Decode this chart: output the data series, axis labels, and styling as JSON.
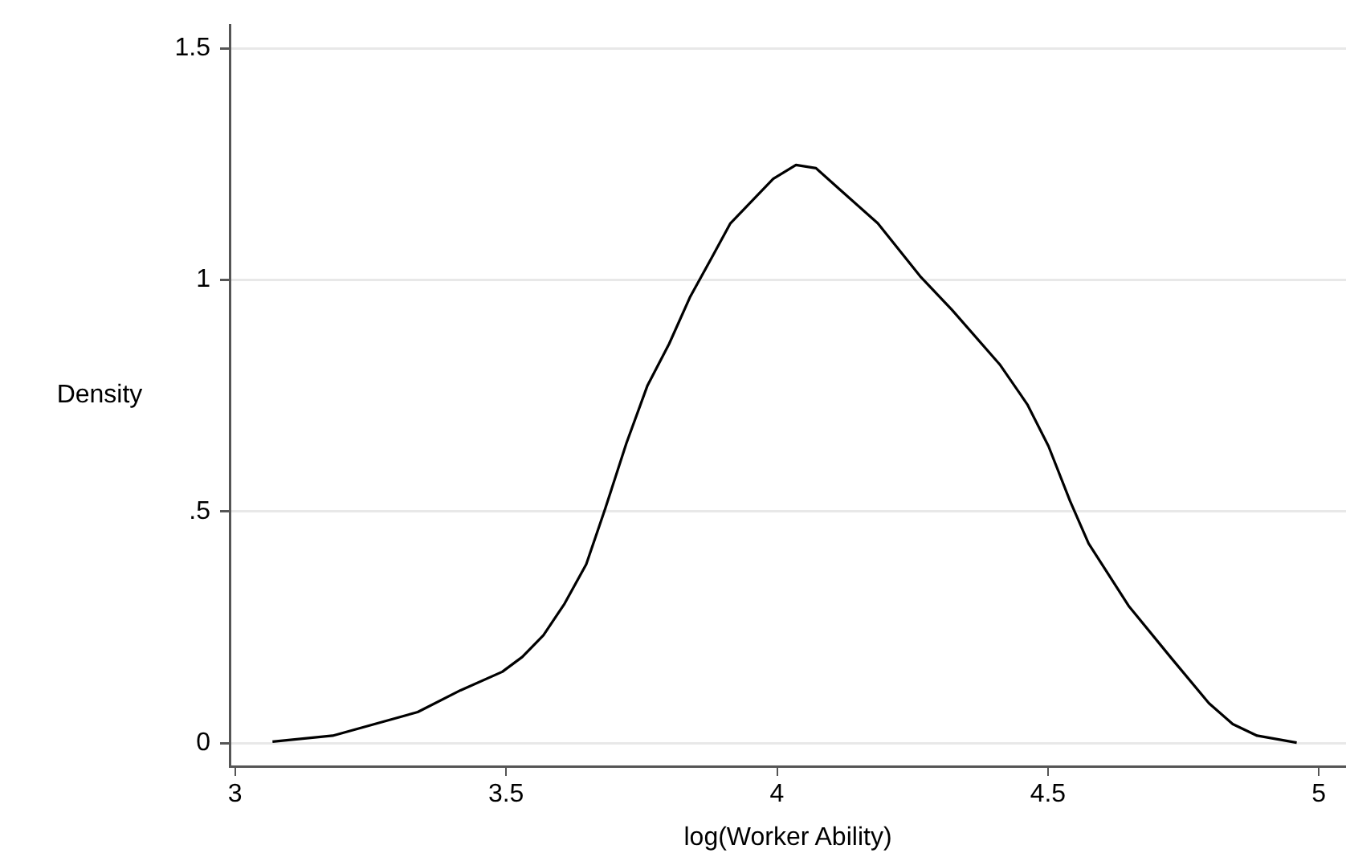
{
  "chart_data": {
    "type": "line",
    "xlabel": "log(Worker Ability)",
    "ylabel": "Density",
    "series": [
      {
        "color": "#000000",
        "x": [
          3.069,
          3.18,
          3.337,
          3.416,
          3.493,
          3.53,
          3.569,
          3.608,
          3.648,
          3.683,
          3.722,
          3.761,
          3.801,
          3.84,
          3.88,
          3.914,
          3.993,
          4.035,
          4.072,
          4.116,
          4.186,
          4.264,
          4.323,
          4.412,
          4.462,
          4.501,
          4.541,
          4.575,
          4.649,
          4.728,
          4.797,
          4.841,
          4.886,
          4.959
        ],
        "values": [
          0.003,
          0.016,
          0.067,
          0.114,
          0.154,
          0.186,
          0.233,
          0.301,
          0.386,
          0.506,
          0.647,
          0.772,
          0.862,
          0.964,
          1.049,
          1.122,
          1.218,
          1.248,
          1.241,
          1.195,
          1.122,
          1.008,
          0.935,
          0.816,
          0.731,
          0.641,
          0.522,
          0.431,
          0.296,
          0.183,
          0.086,
          0.041,
          0.016,
          0.001
        ]
      }
    ],
    "xlim": [
      2.99,
      5.05
    ],
    "ylim": [
      -0.05,
      1.55
    ],
    "xticks": [
      3,
      3.5,
      4,
      4.5,
      5
    ],
    "yticks": [
      0,
      {
        "value": 0.5,
        "label": ".5"
      },
      1,
      1.5
    ],
    "grid": "y",
    "legend": false,
    "marker": "none",
    "line_style": "solid"
  }
}
